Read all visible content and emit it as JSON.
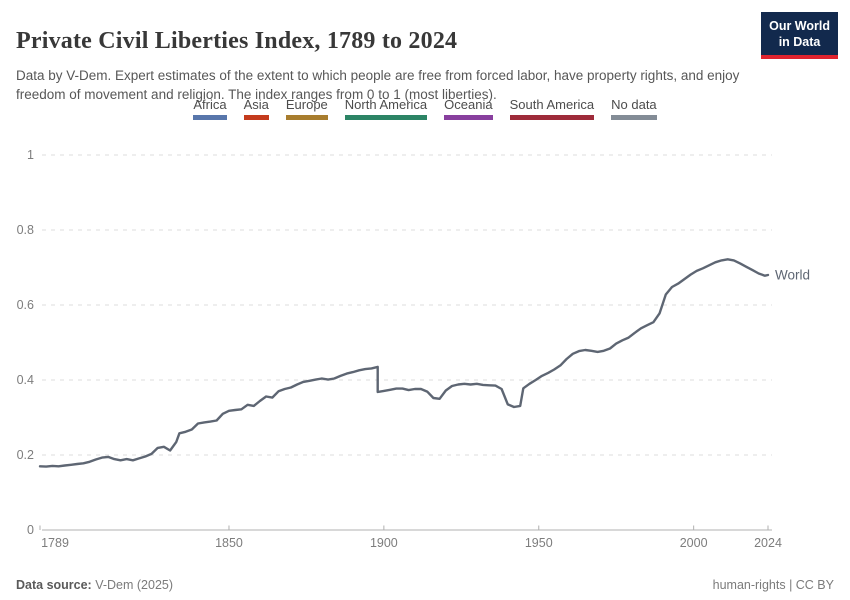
{
  "header": {
    "title": "Private Civil Liberties Index, 1789 to 2024",
    "subtitle": "Data by V-Dem. Expert estimates of the extent to which people are free from forced labor, have property rights, and enjoy freedom of movement and religion. The index ranges from 0 to 1 (most liberties).",
    "logo": {
      "line1": "Our World",
      "line2": "in Data",
      "bg_color": "#12294d",
      "accent_color": "#e0232e"
    }
  },
  "legend": {
    "position": "top-center",
    "items": [
      {
        "label": "Africa",
        "color": "#5876ab"
      },
      {
        "label": "Asia",
        "color": "#c43b1d"
      },
      {
        "label": "Europe",
        "color": "#a87d2e"
      },
      {
        "label": "North America",
        "color": "#2c8465"
      },
      {
        "label": "Oceania",
        "color": "#883f9e"
      },
      {
        "label": "South America",
        "color": "#9e2b3a"
      },
      {
        "label": "No data",
        "color": "#838c96"
      }
    ]
  },
  "chart_data": {
    "type": "line",
    "title": "Private Civil Liberties Index, 1789 to 2024",
    "xlabel": "",
    "ylabel": "",
    "xlim": [
      1789,
      2024
    ],
    "ylim": [
      0,
      1
    ],
    "x_ticks": [
      1789,
      1850,
      1900,
      1950,
      2000,
      2024
    ],
    "y_ticks": [
      0,
      0.2,
      0.4,
      0.6,
      0.8,
      1
    ],
    "grid": "dashed-horizontal",
    "grid_color": "#dcdcdc",
    "axis_color": "#b0b0b0",
    "tick_label_color": "#7d7d7d",
    "series": [
      {
        "name": "World",
        "color": "#5e6673",
        "points": [
          [
            1789,
            0.17
          ],
          [
            1791,
            0.169
          ],
          [
            1793,
            0.171
          ],
          [
            1795,
            0.17
          ],
          [
            1797,
            0.172
          ],
          [
            1799,
            0.174
          ],
          [
            1801,
            0.176
          ],
          [
            1803,
            0.178
          ],
          [
            1805,
            0.182
          ],
          [
            1807,
            0.188
          ],
          [
            1809,
            0.193
          ],
          [
            1811,
            0.195
          ],
          [
            1813,
            0.189
          ],
          [
            1815,
            0.186
          ],
          [
            1817,
            0.189
          ],
          [
            1819,
            0.186
          ],
          [
            1821,
            0.191
          ],
          [
            1823,
            0.196
          ],
          [
            1825,
            0.203
          ],
          [
            1827,
            0.219
          ],
          [
            1829,
            0.222
          ],
          [
            1831,
            0.212
          ],
          [
            1833,
            0.235
          ],
          [
            1834,
            0.258
          ],
          [
            1836,
            0.262
          ],
          [
            1838,
            0.268
          ],
          [
            1840,
            0.284
          ],
          [
            1842,
            0.287
          ],
          [
            1844,
            0.289
          ],
          [
            1846,
            0.292
          ],
          [
            1848,
            0.31
          ],
          [
            1850,
            0.318
          ],
          [
            1852,
            0.32
          ],
          [
            1854,
            0.322
          ],
          [
            1856,
            0.334
          ],
          [
            1858,
            0.331
          ],
          [
            1860,
            0.344
          ],
          [
            1862,
            0.356
          ],
          [
            1864,
            0.353
          ],
          [
            1866,
            0.37
          ],
          [
            1868,
            0.376
          ],
          [
            1870,
            0.38
          ],
          [
            1872,
            0.388
          ],
          [
            1874,
            0.395
          ],
          [
            1876,
            0.398
          ],
          [
            1878,
            0.401
          ],
          [
            1880,
            0.404
          ],
          [
            1882,
            0.401
          ],
          [
            1884,
            0.404
          ],
          [
            1886,
            0.411
          ],
          [
            1888,
            0.417
          ],
          [
            1890,
            0.421
          ],
          [
            1892,
            0.426
          ],
          [
            1894,
            0.429
          ],
          [
            1896,
            0.431
          ],
          [
            1898,
            0.435
          ],
          [
            1898,
            0.368
          ],
          [
            1900,
            0.371
          ],
          [
            1902,
            0.374
          ],
          [
            1904,
            0.377
          ],
          [
            1906,
            0.377
          ],
          [
            1908,
            0.373
          ],
          [
            1910,
            0.376
          ],
          [
            1912,
            0.376
          ],
          [
            1914,
            0.369
          ],
          [
            1916,
            0.352
          ],
          [
            1918,
            0.35
          ],
          [
            1920,
            0.372
          ],
          [
            1922,
            0.384
          ],
          [
            1924,
            0.388
          ],
          [
            1926,
            0.39
          ],
          [
            1928,
            0.388
          ],
          [
            1930,
            0.39
          ],
          [
            1932,
            0.387
          ],
          [
            1934,
            0.386
          ],
          [
            1936,
            0.385
          ],
          [
            1938,
            0.376
          ],
          [
            1940,
            0.335
          ],
          [
            1942,
            0.328
          ],
          [
            1944,
            0.331
          ],
          [
            1945,
            0.378
          ],
          [
            1947,
            0.39
          ],
          [
            1949,
            0.4
          ],
          [
            1951,
            0.411
          ],
          [
            1953,
            0.419
          ],
          [
            1955,
            0.428
          ],
          [
            1957,
            0.439
          ],
          [
            1959,
            0.456
          ],
          [
            1961,
            0.47
          ],
          [
            1963,
            0.477
          ],
          [
            1965,
            0.48
          ],
          [
            1967,
            0.478
          ],
          [
            1969,
            0.475
          ],
          [
            1971,
            0.478
          ],
          [
            1973,
            0.484
          ],
          [
            1975,
            0.497
          ],
          [
            1977,
            0.506
          ],
          [
            1979,
            0.513
          ],
          [
            1981,
            0.526
          ],
          [
            1983,
            0.538
          ],
          [
            1985,
            0.546
          ],
          [
            1987,
            0.554
          ],
          [
            1989,
            0.578
          ],
          [
            1991,
            0.628
          ],
          [
            1993,
            0.648
          ],
          [
            1995,
            0.657
          ],
          [
            1997,
            0.669
          ],
          [
            1999,
            0.681
          ],
          [
            2001,
            0.691
          ],
          [
            2003,
            0.698
          ],
          [
            2005,
            0.706
          ],
          [
            2007,
            0.714
          ],
          [
            2009,
            0.719
          ],
          [
            2011,
            0.722
          ],
          [
            2013,
            0.719
          ],
          [
            2015,
            0.711
          ],
          [
            2017,
            0.702
          ],
          [
            2019,
            0.693
          ],
          [
            2021,
            0.684
          ],
          [
            2023,
            0.678
          ],
          [
            2024,
            0.68
          ]
        ]
      }
    ]
  },
  "footer": {
    "datasource_label": "Data source:",
    "datasource_value": " V-Dem (2025)",
    "rights": "human-rights | CC BY"
  }
}
